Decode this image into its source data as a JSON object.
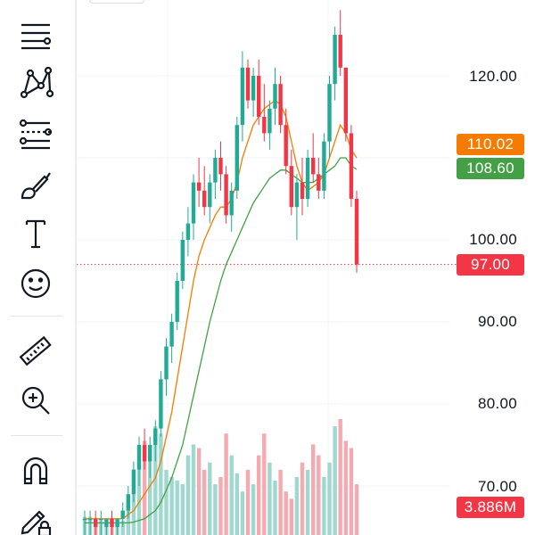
{
  "toolbar": {
    "tools": [
      {
        "name": "trend-line-tools-icon"
      },
      {
        "name": "pattern-tools-icon"
      },
      {
        "name": "fib-tools-icon"
      },
      {
        "name": "brush-icon"
      },
      {
        "name": "text-icon"
      },
      {
        "name": "emoji-icon"
      },
      {
        "name": "ruler-icon"
      },
      {
        "name": "zoom-in-icon"
      },
      {
        "name": "magnet-icon"
      },
      {
        "name": "lock-drawing-icon"
      }
    ]
  },
  "price_axis": {
    "labels": [
      "120.00",
      "100.00",
      "90.00",
      "80.00",
      "70.00"
    ]
  },
  "badges": {
    "ma_fast": "110.02",
    "ma_slow": "108.60",
    "last_price": "97.00",
    "volume": "3.886M"
  },
  "colors": {
    "up": "#22ab94",
    "down": "#f23645",
    "ma_fast": "#f57c00",
    "ma_slow": "#43a047",
    "volume_up": "#9fd8ce",
    "volume_down": "#f5a9b0",
    "grid": "#f0f3fa"
  },
  "chart_data": {
    "type": "candlestick",
    "y_range": [
      65,
      128
    ],
    "candles": [
      [
        66,
        67,
        64,
        66
      ],
      [
        66,
        67,
        64,
        66
      ],
      [
        66,
        67,
        64,
        65
      ],
      [
        66,
        67,
        64,
        66
      ],
      [
        65,
        66,
        64,
        66
      ],
      [
        66,
        67,
        64,
        65
      ],
      [
        65,
        66,
        64,
        66
      ],
      [
        66,
        68,
        65,
        67
      ],
      [
        67,
        70,
        66,
        69
      ],
      [
        69,
        73,
        68,
        72
      ],
      [
        72,
        76,
        70,
        75
      ],
      [
        75,
        77,
        72,
        73
      ],
      [
        73,
        76,
        71,
        75
      ],
      [
        75,
        78,
        73,
        77
      ],
      [
        77,
        84,
        76,
        83
      ],
      [
        83,
        88,
        81,
        87
      ],
      [
        87,
        91,
        85,
        90
      ],
      [
        90,
        96,
        89,
        95
      ],
      [
        95,
        101,
        94,
        100
      ],
      [
        100,
        104,
        98,
        102
      ],
      [
        102,
        108,
        100,
        107
      ],
      [
        107,
        110,
        104,
        106
      ],
      [
        106,
        109,
        103,
        104
      ],
      [
        104,
        108,
        102,
        107
      ],
      [
        107,
        111,
        105,
        110
      ],
      [
        110,
        112,
        106,
        108
      ],
      [
        108,
        109,
        102,
        103
      ],
      [
        103,
        107,
        101,
        106
      ],
      [
        106,
        115,
        105,
        114
      ],
      [
        114,
        123,
        112,
        121
      ],
      [
        121,
        122,
        116,
        117
      ],
      [
        117,
        121,
        115,
        120
      ],
      [
        120,
        122,
        114,
        115
      ],
      [
        115,
        119,
        112,
        113
      ],
      [
        113,
        117,
        111,
        116
      ],
      [
        116,
        121,
        114,
        119
      ],
      [
        119,
        120,
        113,
        114
      ],
      [
        114,
        116,
        108,
        109
      ],
      [
        109,
        111,
        103,
        104
      ],
      [
        104,
        108,
        100,
        107
      ],
      [
        107,
        110,
        103,
        105
      ],
      [
        105,
        111,
        104,
        110
      ],
      [
        110,
        113,
        107,
        108
      ],
      [
        108,
        110,
        105,
        106
      ],
      [
        106,
        113,
        105,
        112
      ],
      [
        112,
        120,
        110,
        119
      ],
      [
        119,
        126,
        117,
        125
      ],
      [
        125,
        128,
        120,
        121
      ],
      [
        121,
        121,
        112,
        113
      ],
      [
        113,
        114,
        104,
        105
      ],
      [
        105,
        106,
        96,
        97
      ]
    ],
    "volumes": [
      5,
      5,
      4,
      4,
      3,
      4,
      3,
      4,
      8,
      12,
      20,
      26,
      22,
      30,
      28,
      18,
      16,
      15,
      14,
      22,
      25,
      24,
      18,
      20,
      14,
      16,
      28,
      22,
      17,
      12,
      18,
      14,
      22,
      28,
      20,
      15,
      18,
      12,
      10,
      16,
      20,
      18,
      25,
      22,
      16,
      20,
      30,
      32,
      26,
      24,
      14
    ],
    "ma_fast": [
      66,
      66,
      66,
      66,
      66,
      66,
      66,
      66,
      66.5,
      67,
      68,
      69,
      70,
      71,
      73,
      76,
      79,
      83,
      87,
      91,
      95,
      98,
      100,
      101.5,
      103,
      104,
      104,
      105,
      107,
      110,
      112,
      114,
      115,
      116,
      116.5,
      117,
      116.5,
      115,
      112,
      109,
      107,
      106,
      106.5,
      107,
      108,
      110,
      112,
      114,
      113,
      111,
      110
    ],
    "ma_slow": [
      65.5,
      65.5,
      65.5,
      65.5,
      65.5,
      65.5,
      65.5,
      65.5,
      65.5,
      65.6,
      65.8,
      66,
      66.5,
      67,
      68,
      69.5,
      71,
      73,
      75,
      78,
      81,
      84,
      87,
      90,
      92.5,
      95,
      97,
      98.5,
      100,
      101.5,
      103,
      104.5,
      105.5,
      106.5,
      107.5,
      108,
      108.5,
      108.5,
      108,
      107.5,
      107,
      107,
      107,
      107.5,
      108,
      108.5,
      109,
      110,
      110,
      109,
      108.6
    ]
  }
}
